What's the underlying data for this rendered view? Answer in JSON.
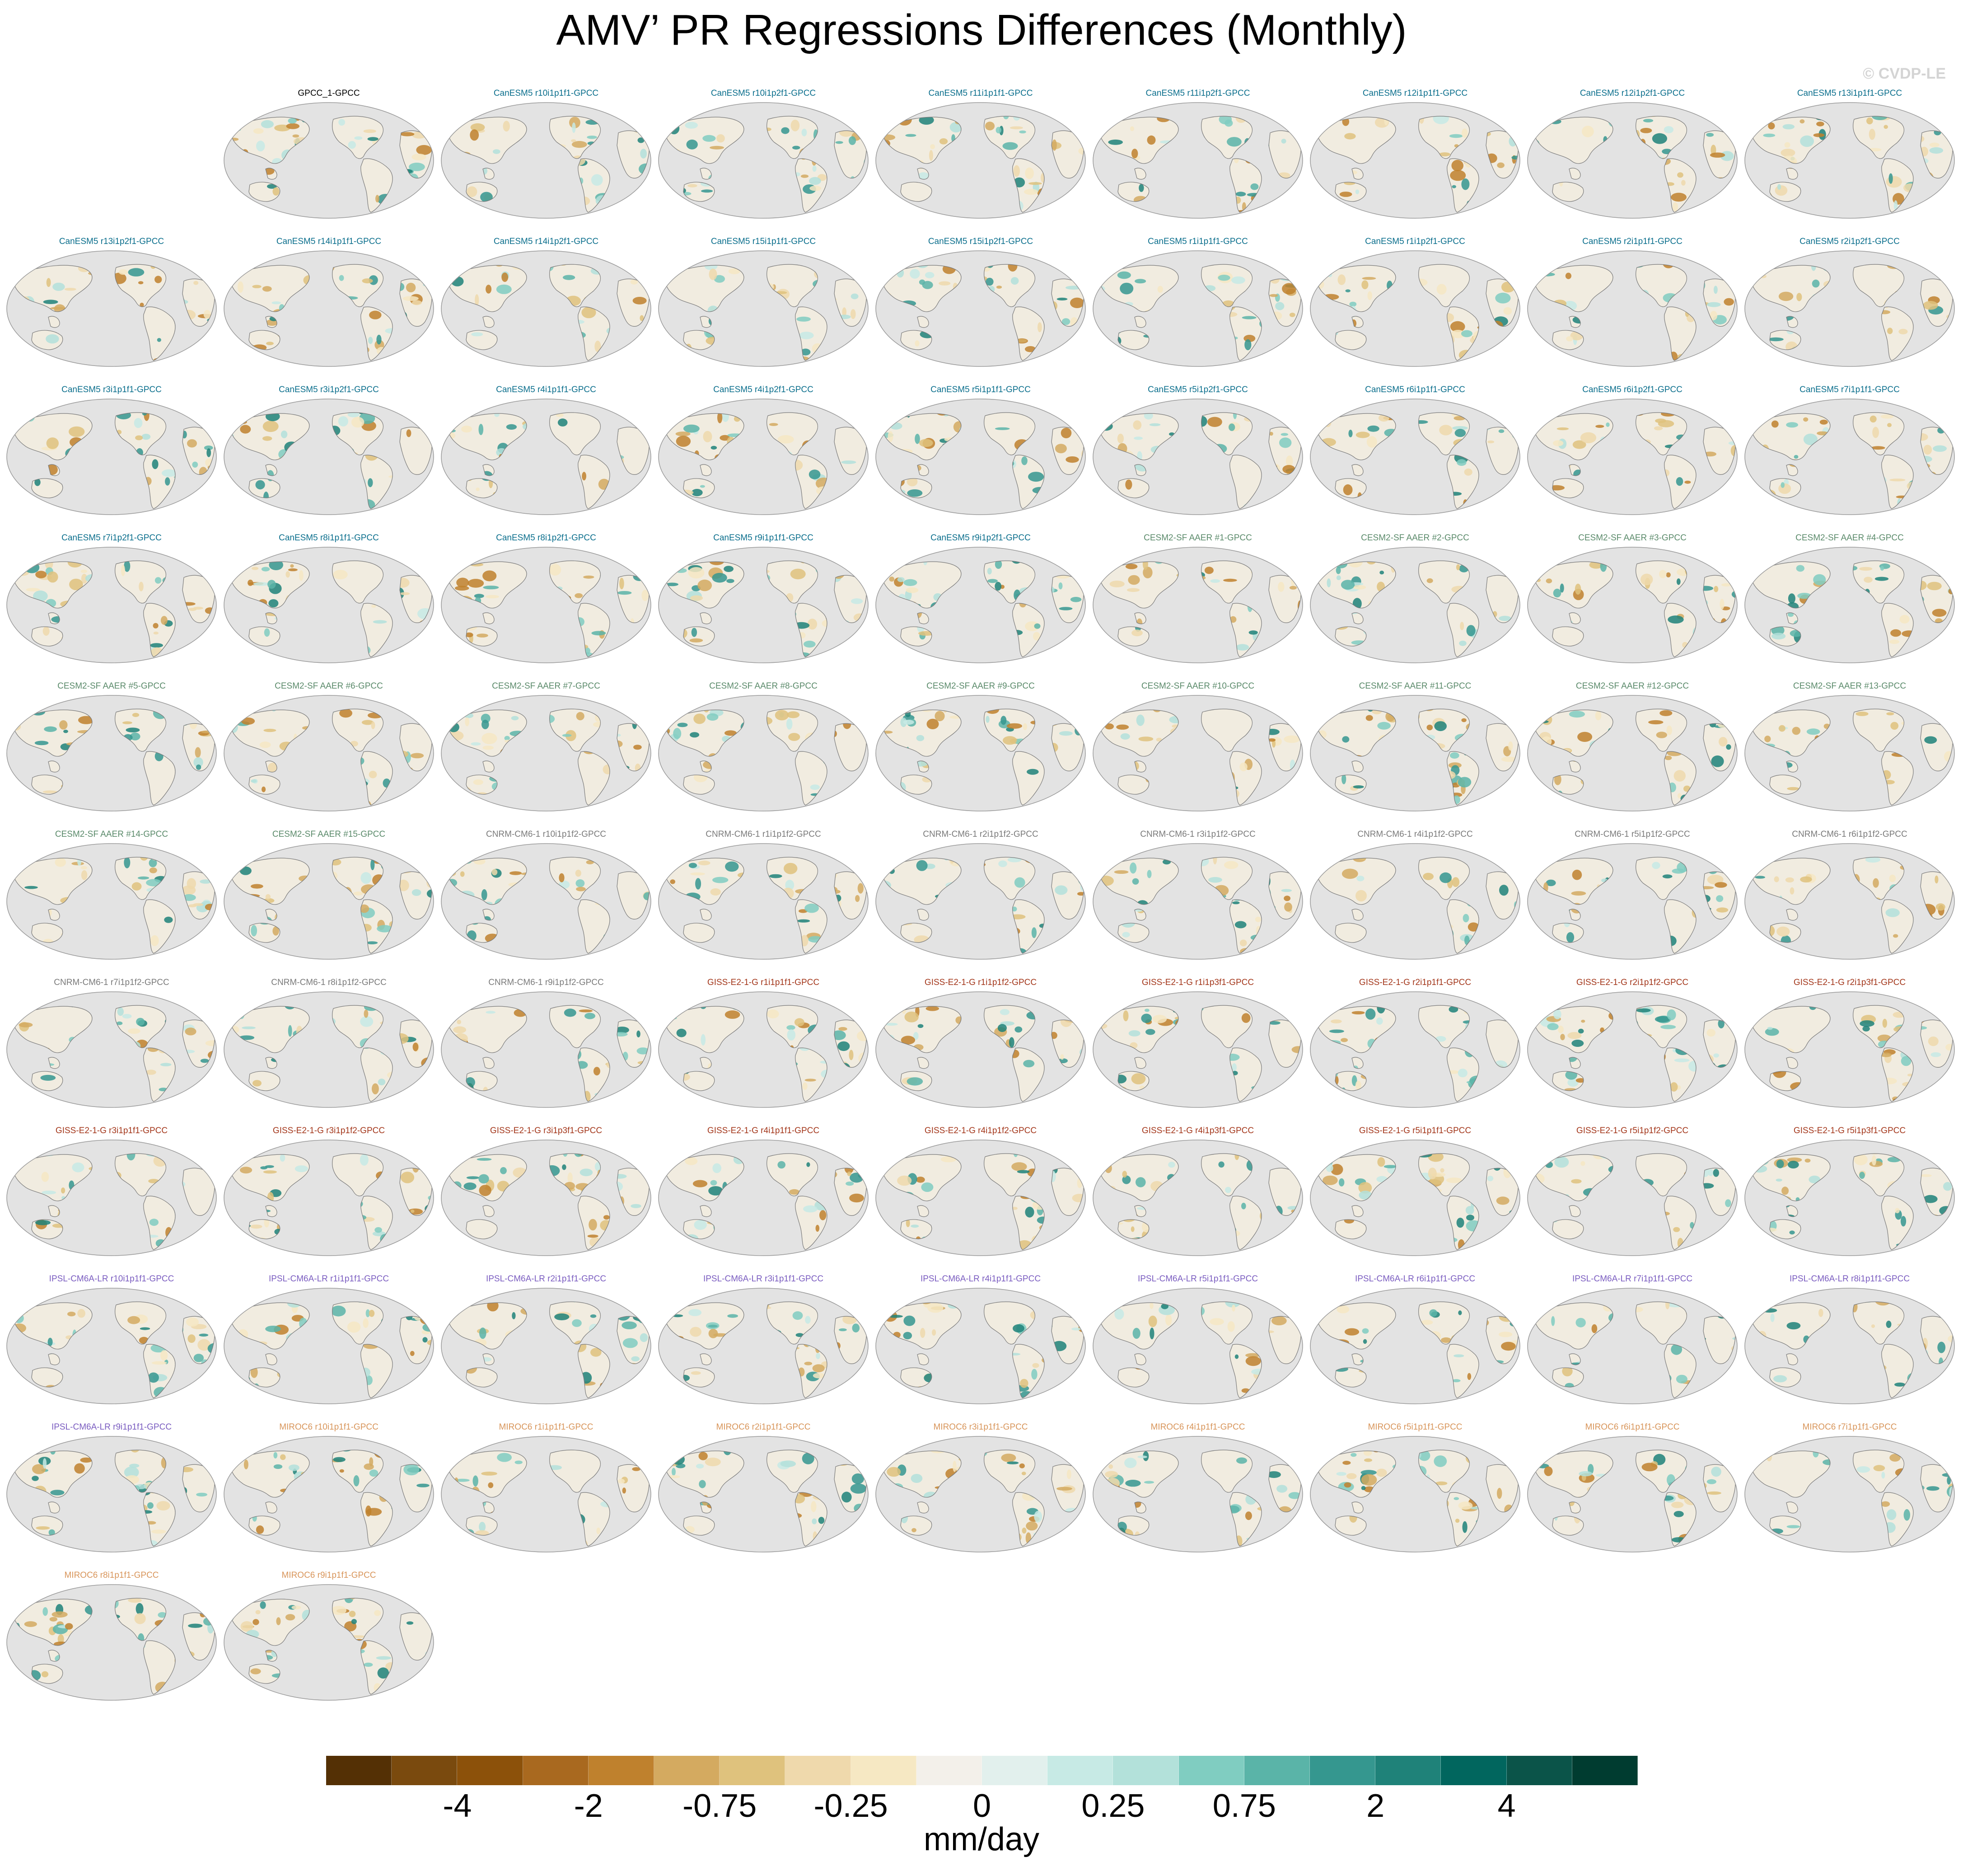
{
  "title": "AMV’ PR Regressions Differences (Monthly)",
  "copyright": "© CVDP-LE",
  "units": "mm/day",
  "colorbar": {
    "tick_labels": [
      "-4",
      "-2",
      "-0.75",
      "-0.25",
      "0",
      "0.25",
      "0.75",
      "2",
      "4"
    ],
    "colors": [
      "#543005",
      "#7a4a0e",
      "#8c510a",
      "#a9691f",
      "#bf812d",
      "#d4aa60",
      "#dfc27d",
      "#efd9ac",
      "#f6e8c3",
      "#f3f0ea",
      "#e2f0ed",
      "#c7eae5",
      "#b3e1da",
      "#80cdc1",
      "#5ab4a8",
      "#35978f",
      "#1f8279",
      "#01665e",
      "#0b5449",
      "#003c30"
    ]
  },
  "family_colors": {
    "obs": "#000000",
    "CanESM5": "#0a6e8c",
    "CESM2-SF AAER": "#5a8a6a",
    "CNRM-CM6-1": "#7a7a7a",
    "GISS-E2-1-G": "#a3361a",
    "IPSL-CM6A-LR": "#7a5cc0",
    "MIROC6": "#d8955a"
  },
  "map_colors": {
    "ocean": "#e3e3e3",
    "coast": "#7a7a7a",
    "dry": "#d9b26a",
    "wet": "#4aa79b",
    "neutral": "#f1ece0"
  },
  "panels": [
    {
      "label": "GPCC_1-GPCC",
      "family": "obs"
    },
    {
      "label": "CanESM5 r10i1p1f1-GPCC",
      "family": "CanESM5"
    },
    {
      "label": "CanESM5 r10i1p2f1-GPCC",
      "family": "CanESM5"
    },
    {
      "label": "CanESM5 r11i1p1f1-GPCC",
      "family": "CanESM5"
    },
    {
      "label": "CanESM5 r11i1p2f1-GPCC",
      "family": "CanESM5"
    },
    {
      "label": "CanESM5 r12i1p1f1-GPCC",
      "family": "CanESM5"
    },
    {
      "label": "CanESM5 r12i1p2f1-GPCC",
      "family": "CanESM5"
    },
    {
      "label": "CanESM5 r13i1p1f1-GPCC",
      "family": "CanESM5"
    },
    {
      "label": "CanESM5 r13i1p2f1-GPCC",
      "family": "CanESM5"
    },
    {
      "label": "CanESM5 r14i1p1f1-GPCC",
      "family": "CanESM5"
    },
    {
      "label": "CanESM5 r14i1p2f1-GPCC",
      "family": "CanESM5"
    },
    {
      "label": "CanESM5 r15i1p1f1-GPCC",
      "family": "CanESM5"
    },
    {
      "label": "CanESM5 r15i1p2f1-GPCC",
      "family": "CanESM5"
    },
    {
      "label": "CanESM5 r1i1p1f1-GPCC",
      "family": "CanESM5"
    },
    {
      "label": "CanESM5 r1i1p2f1-GPCC",
      "family": "CanESM5"
    },
    {
      "label": "CanESM5 r2i1p1f1-GPCC",
      "family": "CanESM5"
    },
    {
      "label": "CanESM5 r2i1p2f1-GPCC",
      "family": "CanESM5"
    },
    {
      "label": "CanESM5 r3i1p1f1-GPCC",
      "family": "CanESM5"
    },
    {
      "label": "CanESM5 r3i1p2f1-GPCC",
      "family": "CanESM5"
    },
    {
      "label": "CanESM5 r4i1p1f1-GPCC",
      "family": "CanESM5"
    },
    {
      "label": "CanESM5 r4i1p2f1-GPCC",
      "family": "CanESM5"
    },
    {
      "label": "CanESM5 r5i1p1f1-GPCC",
      "family": "CanESM5"
    },
    {
      "label": "CanESM5 r5i1p2f1-GPCC",
      "family": "CanESM5"
    },
    {
      "label": "CanESM5 r6i1p1f1-GPCC",
      "family": "CanESM5"
    },
    {
      "label": "CanESM5 r6i1p2f1-GPCC",
      "family": "CanESM5"
    },
    {
      "label": "CanESM5 r7i1p1f1-GPCC",
      "family": "CanESM5"
    },
    {
      "label": "CanESM5 r7i1p2f1-GPCC",
      "family": "CanESM5"
    },
    {
      "label": "CanESM5 r8i1p1f1-GPCC",
      "family": "CanESM5"
    },
    {
      "label": "CanESM5 r8i1p2f1-GPCC",
      "family": "CanESM5"
    },
    {
      "label": "CanESM5 r9i1p1f1-GPCC",
      "family": "CanESM5"
    },
    {
      "label": "CanESM5 r9i1p2f1-GPCC",
      "family": "CanESM5"
    },
    {
      "label": "CESM2-SF AAER #1-GPCC",
      "family": "CESM2-SF AAER"
    },
    {
      "label": "CESM2-SF AAER #2-GPCC",
      "family": "CESM2-SF AAER"
    },
    {
      "label": "CESM2-SF AAER #3-GPCC",
      "family": "CESM2-SF AAER"
    },
    {
      "label": "CESM2-SF AAER #4-GPCC",
      "family": "CESM2-SF AAER"
    },
    {
      "label": "CESM2-SF AAER #5-GPCC",
      "family": "CESM2-SF AAER"
    },
    {
      "label": "CESM2-SF AAER #6-GPCC",
      "family": "CESM2-SF AAER"
    },
    {
      "label": "CESM2-SF AAER #7-GPCC",
      "family": "CESM2-SF AAER"
    },
    {
      "label": "CESM2-SF AAER #8-GPCC",
      "family": "CESM2-SF AAER"
    },
    {
      "label": "CESM2-SF AAER #9-GPCC",
      "family": "CESM2-SF AAER"
    },
    {
      "label": "CESM2-SF AAER #10-GPCC",
      "family": "CESM2-SF AAER"
    },
    {
      "label": "CESM2-SF AAER #11-GPCC",
      "family": "CESM2-SF AAER"
    },
    {
      "label": "CESM2-SF AAER #12-GPCC",
      "family": "CESM2-SF AAER"
    },
    {
      "label": "CESM2-SF AAER #13-GPCC",
      "family": "CESM2-SF AAER"
    },
    {
      "label": "CESM2-SF AAER #14-GPCC",
      "family": "CESM2-SF AAER"
    },
    {
      "label": "CESM2-SF AAER #15-GPCC",
      "family": "CESM2-SF AAER"
    },
    {
      "label": "CNRM-CM6-1 r10i1p1f2-GPCC",
      "family": "CNRM-CM6-1"
    },
    {
      "label": "CNRM-CM6-1 r1i1p1f2-GPCC",
      "family": "CNRM-CM6-1"
    },
    {
      "label": "CNRM-CM6-1 r2i1p1f2-GPCC",
      "family": "CNRM-CM6-1"
    },
    {
      "label": "CNRM-CM6-1 r3i1p1f2-GPCC",
      "family": "CNRM-CM6-1"
    },
    {
      "label": "CNRM-CM6-1 r4i1p1f2-GPCC",
      "family": "CNRM-CM6-1"
    },
    {
      "label": "CNRM-CM6-1 r5i1p1f2-GPCC",
      "family": "CNRM-CM6-1"
    },
    {
      "label": "CNRM-CM6-1 r6i1p1f2-GPCC",
      "family": "CNRM-CM6-1"
    },
    {
      "label": "CNRM-CM6-1 r7i1p1f2-GPCC",
      "family": "CNRM-CM6-1"
    },
    {
      "label": "CNRM-CM6-1 r8i1p1f2-GPCC",
      "family": "CNRM-CM6-1"
    },
    {
      "label": "CNRM-CM6-1 r9i1p1f2-GPCC",
      "family": "CNRM-CM6-1"
    },
    {
      "label": "GISS-E2-1-G r1i1p1f1-GPCC",
      "family": "GISS-E2-1-G"
    },
    {
      "label": "GISS-E2-1-G r1i1p1f2-GPCC",
      "family": "GISS-E2-1-G"
    },
    {
      "label": "GISS-E2-1-G r1i1p3f1-GPCC",
      "family": "GISS-E2-1-G"
    },
    {
      "label": "GISS-E2-1-G r2i1p1f1-GPCC",
      "family": "GISS-E2-1-G"
    },
    {
      "label": "GISS-E2-1-G r2i1p1f2-GPCC",
      "family": "GISS-E2-1-G"
    },
    {
      "label": "GISS-E2-1-G r2i1p3f1-GPCC",
      "family": "GISS-E2-1-G"
    },
    {
      "label": "GISS-E2-1-G r3i1p1f1-GPCC",
      "family": "GISS-E2-1-G"
    },
    {
      "label": "GISS-E2-1-G r3i1p1f2-GPCC",
      "family": "GISS-E2-1-G"
    },
    {
      "label": "GISS-E2-1-G r3i1p3f1-GPCC",
      "family": "GISS-E2-1-G"
    },
    {
      "label": "GISS-E2-1-G r4i1p1f1-GPCC",
      "family": "GISS-E2-1-G"
    },
    {
      "label": "GISS-E2-1-G r4i1p1f2-GPCC",
      "family": "GISS-E2-1-G"
    },
    {
      "label": "GISS-E2-1-G r4i1p3f1-GPCC",
      "family": "GISS-E2-1-G"
    },
    {
      "label": "GISS-E2-1-G r5i1p1f1-GPCC",
      "family": "GISS-E2-1-G"
    },
    {
      "label": "GISS-E2-1-G r5i1p1f2-GPCC",
      "family": "GISS-E2-1-G"
    },
    {
      "label": "GISS-E2-1-G r5i1p3f1-GPCC",
      "family": "GISS-E2-1-G"
    },
    {
      "label": "IPSL-CM6A-LR r10i1p1f1-GPCC",
      "family": "IPSL-CM6A-LR"
    },
    {
      "label": "IPSL-CM6A-LR r1i1p1f1-GPCC",
      "family": "IPSL-CM6A-LR"
    },
    {
      "label": "IPSL-CM6A-LR r2i1p1f1-GPCC",
      "family": "IPSL-CM6A-LR"
    },
    {
      "label": "IPSL-CM6A-LR r3i1p1f1-GPCC",
      "family": "IPSL-CM6A-LR"
    },
    {
      "label": "IPSL-CM6A-LR r4i1p1f1-GPCC",
      "family": "IPSL-CM6A-LR"
    },
    {
      "label": "IPSL-CM6A-LR r5i1p1f1-GPCC",
      "family": "IPSL-CM6A-LR"
    },
    {
      "label": "IPSL-CM6A-LR r6i1p1f1-GPCC",
      "family": "IPSL-CM6A-LR"
    },
    {
      "label": "IPSL-CM6A-LR r7i1p1f1-GPCC",
      "family": "IPSL-CM6A-LR"
    },
    {
      "label": "IPSL-CM6A-LR r8i1p1f1-GPCC",
      "family": "IPSL-CM6A-LR"
    },
    {
      "label": "IPSL-CM6A-LR r9i1p1f1-GPCC",
      "family": "IPSL-CM6A-LR"
    },
    {
      "label": "MIROC6 r10i1p1f1-GPCC",
      "family": "MIROC6"
    },
    {
      "label": "MIROC6 r1i1p1f1-GPCC",
      "family": "MIROC6"
    },
    {
      "label": "MIROC6 r2i1p1f1-GPCC",
      "family": "MIROC6"
    },
    {
      "label": "MIROC6 r3i1p1f1-GPCC",
      "family": "MIROC6"
    },
    {
      "label": "MIROC6 r4i1p1f1-GPCC",
      "family": "MIROC6"
    },
    {
      "label": "MIROC6 r5i1p1f1-GPCC",
      "family": "MIROC6"
    },
    {
      "label": "MIROC6 r6i1p1f1-GPCC",
      "family": "MIROC6"
    },
    {
      "label": "MIROC6 r7i1p1f1-GPCC",
      "family": "MIROC6"
    },
    {
      "label": "MIROC6 r8i1p1f1-GPCC",
      "family": "MIROC6"
    },
    {
      "label": "MIROC6 r9i1p1f1-GPCC",
      "family": "MIROC6"
    }
  ]
}
